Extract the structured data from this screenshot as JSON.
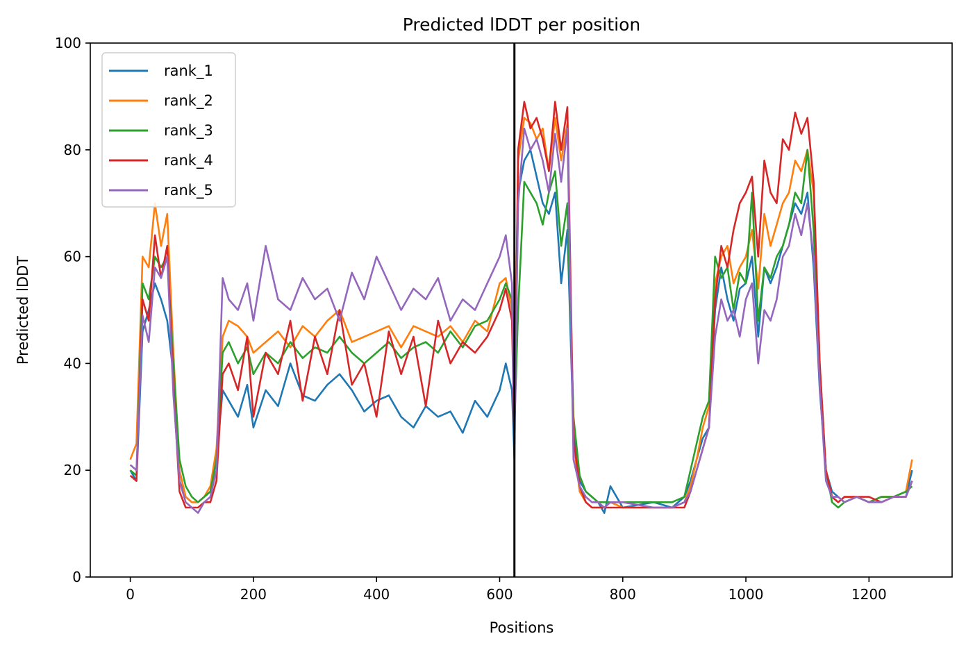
{
  "chart_data": {
    "type": "line",
    "title": "Predicted lDDT per position",
    "xlabel": "Positions",
    "ylabel": "Predicted lDDT",
    "xlim": [
      -65,
      1335
    ],
    "ylim": [
      0,
      100
    ],
    "xticks": [
      0,
      200,
      400,
      600,
      800,
      1000,
      1200
    ],
    "yticks": [
      0,
      20,
      40,
      60,
      80,
      100
    ],
    "grid": false,
    "legend_position": "top-left",
    "vline": {
      "x": 624,
      "color": "#000000"
    },
    "series": [
      {
        "name": "rank_1",
        "color": "#1f77b4",
        "x": [
          0,
          10,
          20,
          30,
          40,
          50,
          60,
          70,
          80,
          90,
          100,
          110,
          120,
          130,
          140,
          150,
          160,
          175,
          190,
          200,
          220,
          240,
          260,
          280,
          300,
          320,
          340,
          360,
          380,
          400,
          420,
          440,
          460,
          480,
          500,
          520,
          540,
          560,
          580,
          600,
          610,
          620,
          624,
          630,
          640,
          650,
          660,
          670,
          680,
          690,
          700,
          710,
          720,
          730,
          740,
          750,
          760,
          770,
          780,
          800,
          850,
          880,
          900,
          910,
          920,
          930,
          940,
          950,
          960,
          970,
          980,
          990,
          1000,
          1010,
          1020,
          1030,
          1040,
          1050,
          1060,
          1070,
          1080,
          1090,
          1100,
          1110,
          1120,
          1130,
          1140,
          1150,
          1160,
          1180,
          1200,
          1220,
          1240,
          1260,
          1270
        ],
        "y": [
          20,
          18,
          46,
          50,
          55,
          52,
          48,
          38,
          18,
          15,
          14,
          14,
          15,
          16,
          22,
          35,
          33,
          30,
          36,
          28,
          35,
          32,
          40,
          34,
          33,
          36,
          38,
          35,
          31,
          33,
          34,
          30,
          28,
          32,
          30,
          31,
          27,
          33,
          30,
          35,
          40,
          35,
          22,
          72,
          78,
          80,
          75,
          70,
          68,
          72,
          55,
          65,
          27,
          18,
          16,
          15,
          14,
          12,
          17,
          13,
          14,
          13,
          15,
          18,
          22,
          26,
          28,
          50,
          58,
          52,
          48,
          54,
          55,
          60,
          45,
          58,
          55,
          58,
          62,
          66,
          70,
          68,
          72,
          58,
          35,
          20,
          16,
          15,
          14,
          15,
          14,
          15,
          15,
          15,
          20
        ]
      },
      {
        "name": "rank_2",
        "color": "#ff7f0e",
        "x": [
          0,
          10,
          20,
          30,
          40,
          50,
          60,
          70,
          80,
          90,
          100,
          110,
          120,
          130,
          140,
          150,
          160,
          175,
          190,
          200,
          220,
          240,
          260,
          280,
          300,
          320,
          340,
          360,
          380,
          400,
          420,
          440,
          460,
          480,
          500,
          520,
          540,
          560,
          580,
          600,
          610,
          620,
          624,
          630,
          640,
          650,
          660,
          670,
          680,
          690,
          700,
          710,
          720,
          730,
          740,
          750,
          760,
          770,
          780,
          800,
          850,
          880,
          900,
          910,
          920,
          930,
          940,
          950,
          960,
          970,
          980,
          990,
          1000,
          1010,
          1020,
          1030,
          1040,
          1050,
          1060,
          1070,
          1080,
          1090,
          1100,
          1110,
          1120,
          1130,
          1140,
          1150,
          1160,
          1180,
          1200,
          1220,
          1240,
          1260,
          1270
        ],
        "y": [
          22,
          25,
          60,
          58,
          70,
          62,
          68,
          42,
          20,
          15,
          14,
          14,
          15,
          17,
          24,
          45,
          48,
          47,
          45,
          42,
          44,
          46,
          43,
          47,
          45,
          48,
          50,
          44,
          45,
          46,
          47,
          43,
          47,
          46,
          45,
          47,
          44,
          48,
          46,
          55,
          56,
          50,
          30,
          78,
          86,
          85,
          82,
          84,
          76,
          86,
          78,
          85,
          25,
          16,
          14,
          13,
          13,
          13,
          14,
          13,
          13,
          13,
          14,
          17,
          22,
          28,
          32,
          55,
          60,
          62,
          55,
          58,
          60,
          65,
          54,
          68,
          62,
          66,
          70,
          72,
          78,
          76,
          80,
          72,
          40,
          20,
          15,
          14,
          15,
          15,
          14,
          15,
          15,
          16,
          22
        ]
      },
      {
        "name": "rank_3",
        "color": "#2ca02c",
        "x": [
          0,
          10,
          20,
          30,
          40,
          50,
          60,
          70,
          80,
          90,
          100,
          110,
          120,
          130,
          140,
          150,
          160,
          175,
          190,
          200,
          220,
          240,
          260,
          280,
          300,
          320,
          340,
          360,
          380,
          400,
          420,
          440,
          460,
          480,
          500,
          520,
          540,
          560,
          580,
          600,
          610,
          620,
          624,
          630,
          640,
          650,
          660,
          670,
          680,
          690,
          700,
          710,
          720,
          730,
          740,
          750,
          760,
          770,
          780,
          800,
          850,
          880,
          900,
          910,
          920,
          930,
          940,
          950,
          960,
          970,
          980,
          990,
          1000,
          1010,
          1020,
          1030,
          1040,
          1050,
          1060,
          1070,
          1080,
          1090,
          1100,
          1110,
          1120,
          1130,
          1140,
          1150,
          1160,
          1180,
          1200,
          1220,
          1240,
          1260,
          1270
        ],
        "y": [
          20,
          19,
          55,
          52,
          60,
          58,
          60,
          40,
          22,
          17,
          15,
          14,
          15,
          16,
          22,
          42,
          44,
          40,
          43,
          38,
          42,
          40,
          44,
          41,
          43,
          42,
          45,
          42,
          40,
          42,
          44,
          41,
          43,
          44,
          42,
          46,
          43,
          47,
          48,
          52,
          55,
          52,
          28,
          50,
          74,
          72,
          70,
          66,
          72,
          76,
          62,
          70,
          30,
          19,
          16,
          15,
          14,
          14,
          14,
          14,
          14,
          14,
          15,
          20,
          25,
          30,
          33,
          60,
          56,
          58,
          50,
          57,
          55,
          72,
          48,
          58,
          56,
          60,
          62,
          66,
          72,
          70,
          80,
          65,
          38,
          20,
          14,
          13,
          14,
          15,
          14,
          15,
          15,
          16,
          17
        ]
      },
      {
        "name": "rank_4",
        "color": "#d62728",
        "x": [
          0,
          10,
          20,
          30,
          40,
          50,
          60,
          70,
          80,
          90,
          100,
          110,
          120,
          130,
          140,
          150,
          160,
          175,
          190,
          200,
          220,
          240,
          260,
          280,
          300,
          320,
          340,
          360,
          380,
          400,
          420,
          440,
          460,
          480,
          500,
          520,
          540,
          560,
          580,
          600,
          610,
          620,
          624,
          630,
          640,
          650,
          660,
          670,
          680,
          690,
          700,
          710,
          720,
          730,
          740,
          750,
          760,
          770,
          780,
          800,
          850,
          880,
          900,
          910,
          920,
          930,
          940,
          950,
          960,
          970,
          980,
          990,
          1000,
          1010,
          1020,
          1030,
          1040,
          1050,
          1060,
          1070,
          1080,
          1090,
          1100,
          1110,
          1120,
          1130,
          1140,
          1150,
          1160,
          1180,
          1200,
          1220,
          1240,
          1260,
          1270
        ],
        "y": [
          19,
          18,
          52,
          48,
          64,
          56,
          62,
          36,
          16,
          13,
          13,
          13,
          14,
          14,
          18,
          38,
          40,
          35,
          45,
          30,
          42,
          38,
          48,
          33,
          45,
          38,
          50,
          36,
          40,
          30,
          46,
          38,
          45,
          32,
          48,
          40,
          44,
          42,
          45,
          50,
          54,
          48,
          25,
          80,
          89,
          84,
          86,
          82,
          76,
          89,
          80,
          88,
          26,
          17,
          14,
          13,
          13,
          13,
          13,
          13,
          13,
          13,
          13,
          16,
          20,
          24,
          28,
          52,
          62,
          58,
          65,
          70,
          72,
          75,
          60,
          78,
          72,
          70,
          82,
          80,
          87,
          83,
          86,
          74,
          40,
          20,
          15,
          14,
          15,
          15,
          15,
          14,
          15,
          15,
          18
        ]
      },
      {
        "name": "rank_5",
        "color": "#9467bd",
        "x": [
          0,
          10,
          20,
          30,
          40,
          50,
          60,
          70,
          80,
          90,
          100,
          110,
          120,
          130,
          140,
          150,
          160,
          175,
          190,
          200,
          220,
          240,
          260,
          280,
          300,
          320,
          340,
          360,
          380,
          400,
          420,
          440,
          460,
          480,
          500,
          520,
          540,
          560,
          580,
          600,
          610,
          620,
          624,
          630,
          640,
          650,
          660,
          670,
          680,
          690,
          700,
          710,
          720,
          730,
          740,
          750,
          760,
          770,
          780,
          800,
          850,
          880,
          900,
          910,
          920,
          930,
          940,
          950,
          960,
          970,
          980,
          990,
          1000,
          1010,
          1020,
          1030,
          1040,
          1050,
          1060,
          1070,
          1080,
          1090,
          1100,
          1110,
          1120,
          1130,
          1140,
          1150,
          1160,
          1180,
          1200,
          1220,
          1240,
          1260,
          1270
        ],
        "y": [
          21,
          20,
          49,
          44,
          58,
          56,
          60,
          34,
          18,
          14,
          13,
          12,
          14,
          15,
          20,
          56,
          52,
          50,
          55,
          48,
          62,
          52,
          50,
          56,
          52,
          54,
          48,
          57,
          52,
          60,
          55,
          50,
          54,
          52,
          56,
          48,
          52,
          50,
          55,
          60,
          64,
          55,
          26,
          70,
          84,
          80,
          82,
          78,
          72,
          83,
          74,
          84,
          22,
          17,
          15,
          14,
          14,
          13,
          14,
          14,
          13,
          13,
          14,
          16,
          20,
          24,
          28,
          45,
          52,
          48,
          50,
          45,
          52,
          55,
          40,
          50,
          48,
          52,
          60,
          62,
          68,
          64,
          70,
          60,
          36,
          18,
          15,
          15,
          14,
          15,
          14,
          14,
          15,
          15,
          18
        ]
      }
    ]
  }
}
